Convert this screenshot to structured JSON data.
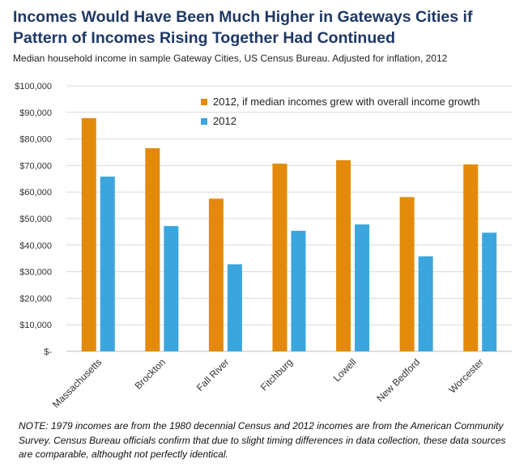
{
  "chart_data": {
    "type": "bar",
    "title": "Incomes Would Have Been Much Higher in Gateways Cities if Pattern of Incomes Rising Together Had Continued",
    "subtitle": "Median household income in sample Gateway Cities, US Census Bureau. Adjusted for inflation, 2012",
    "categories": [
      "Massachusetts",
      "Brockton",
      "Fall River",
      "Fitchburg",
      "Lowell",
      "New Bedford",
      "Worcester"
    ],
    "series": [
      {
        "name": "2012, if median incomes grew with overall income growth",
        "color": "#e38a0a",
        "values": [
          87800,
          76500,
          57500,
          70700,
          72000,
          58100,
          70400
        ]
      },
      {
        "name": "2012",
        "color": "#3aa6dd",
        "values": [
          65800,
          47200,
          32800,
          45400,
          47800,
          35800,
          44700
        ]
      }
    ],
    "ylim": [
      0,
      100000
    ],
    "yticks": [
      0,
      10000,
      20000,
      30000,
      40000,
      50000,
      60000,
      70000,
      80000,
      90000,
      100000
    ],
    "ytick_labels": [
      "$-",
      "$10,000",
      "$20,000",
      "$30,000",
      "$40,000",
      "$50,000",
      "$60,000",
      "$70,000",
      "$80,000",
      "$90,000",
      "$100,000"
    ],
    "grid": true,
    "legend": "top-right"
  },
  "note": "NOTE: 1979 incomes are from the 1980 decennial Census and 2012 incomes are from the American Community Survey. Census Bureau officials confirm that due to slight timing differences in data collection, these data sources are comparable, althought not perfectly identical."
}
